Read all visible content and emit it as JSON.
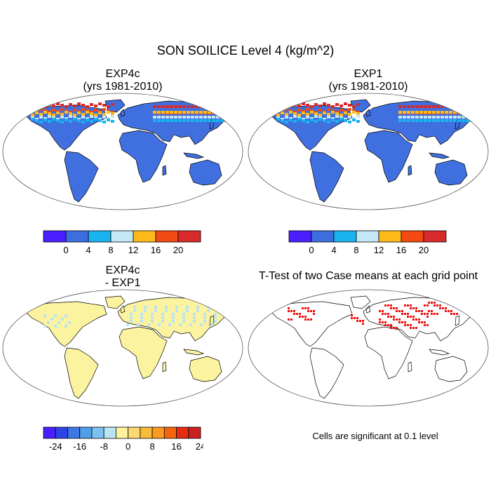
{
  "main_title": "SON SOILICE Level 4 (kg/m^2)",
  "panels": {
    "top_left": {
      "line1": "EXP4c",
      "line2": "(yrs 1981-2010)"
    },
    "top_right": {
      "line1": "EXP1",
      "line2": "(yrs 1981-2010)"
    },
    "bottom_left": {
      "line1": "EXP4c",
      "line2": "- EXP1"
    },
    "bottom_right": {
      "line1": "T-Test of two Case means at each grid point"
    }
  },
  "significance_note": "Cells are significant at 0.1 level",
  "colors": {
    "ocean": "#ffffff",
    "land_mean": "#4070e0",
    "land_diff": "#fbf3a0",
    "diff_lightblue": "#b8e4f4",
    "significant": "#ee1111",
    "coast": "#000000"
  },
  "chart_data": [
    {
      "type": "heatmap",
      "title": "EXP4c (yrs 1981-2010)",
      "projection": "robinson",
      "variable": "SON SOILICE Level 4 (kg/m^2)",
      "colorbar": {
        "colors": [
          "#4a1eff",
          "#3d6ee0",
          "#19b3f0",
          "#c4e8f7",
          "#fdba1a",
          "#f24a10",
          "#d82a2a"
        ],
        "tick_labels": [
          "0",
          "4",
          "8",
          "12",
          "16",
          "20"
        ]
      }
    },
    {
      "type": "heatmap",
      "title": "EXP1 (yrs 1981-2010)",
      "projection": "robinson",
      "variable": "SON SOILICE Level 4 (kg/m^2)",
      "colorbar": {
        "colors": [
          "#4a1eff",
          "#3d6ee0",
          "#19b3f0",
          "#c4e8f7",
          "#fdba1a",
          "#f24a10",
          "#d82a2a"
        ],
        "tick_labels": [
          "0",
          "4",
          "8",
          "12",
          "16",
          "20"
        ]
      }
    },
    {
      "type": "heatmap",
      "title": "EXP4c - EXP1",
      "projection": "robinson",
      "colorbar": {
        "colors": [
          "#4a1eff",
          "#2f44e6",
          "#3d78e2",
          "#4e9ee8",
          "#7cc2f0",
          "#b8e4f4",
          "#fdf2a0",
          "#fcd870",
          "#fbbb3a",
          "#fa9a20",
          "#f5650f",
          "#e62d0f",
          "#cc2020"
        ],
        "tick_labels": [
          "-24",
          "-16",
          "-8",
          "0",
          "8",
          "16",
          "24"
        ]
      }
    },
    {
      "type": "heatmap",
      "title": "T-Test of two Case means at each grid point",
      "projection": "robinson",
      "note": "Cells are significant at 0.1 level"
    }
  ]
}
